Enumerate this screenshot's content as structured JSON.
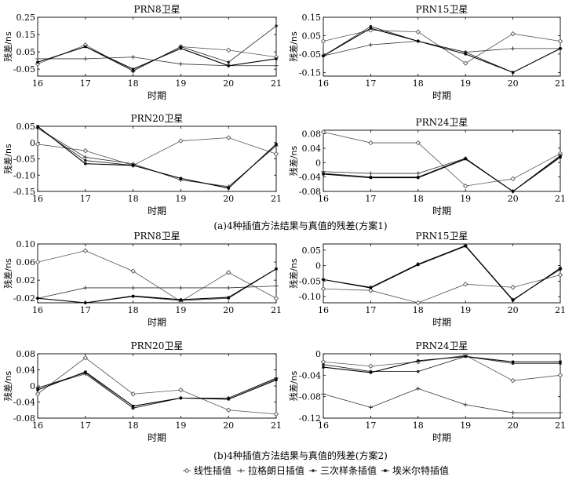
{
  "captions": {
    "a": "(a)4种插值方法结果与真值的残差(方案1)",
    "b": "(b)4种插值方法结果与真值的残差(方案2)"
  },
  "legend": [
    "线性插值",
    "拉格朗日插值",
    "三次样条插值",
    "埃米尔特插值"
  ],
  "colors": {
    "axis": "#000000",
    "series": [
      "#555555",
      "#333333",
      "#222222",
      "#000000"
    ]
  },
  "chart_data": [
    {
      "type": "line",
      "title": "PRN8卫星",
      "xlabel": "时期",
      "ylabel": "残差/ns",
      "x": [
        16,
        17,
        18,
        19,
        20,
        21
      ],
      "xticks": [
        "16",
        "17",
        "18",
        "19",
        "20",
        "21"
      ],
      "ylim": [
        -0.09,
        0.25
      ],
      "yticks": [
        "-0.05",
        "0.05",
        "0.15",
        "0.25"
      ],
      "ytick_values": [
        -0.05,
        0.05,
        0.15,
        0.25
      ],
      "series": [
        {
          "name": "线性插值",
          "values": [
            -0.02,
            0.09,
            -0.06,
            0.08,
            0.06,
            0.02
          ]
        },
        {
          "name": "拉格朗日插值",
          "values": [
            0.01,
            0.01,
            0.02,
            -0.02,
            -0.03,
            -0.03
          ]
        },
        {
          "name": "三次样条插值",
          "values": [
            -0.01,
            0.08,
            -0.06,
            0.08,
            -0.01,
            0.2
          ]
        },
        {
          "name": "埃米尔特插值",
          "values": [
            -0.01,
            0.08,
            -0.05,
            0.07,
            -0.03,
            0.01
          ]
        }
      ]
    },
    {
      "type": "line",
      "title": "PRN15卫星",
      "xlabel": "时期",
      "ylabel": "残差/ns",
      "x": [
        16,
        17,
        18,
        19,
        20,
        21
      ],
      "xticks": [
        "16",
        "17",
        "18",
        "19",
        "20",
        "21"
      ],
      "ylim": [
        -0.17,
        0.15
      ],
      "yticks": [
        "-0.15",
        "-0.05",
        "0.05",
        "0.15"
      ],
      "ytick_values": [
        -0.15,
        -0.05,
        0.05,
        0.15
      ],
      "series": [
        {
          "name": "线性插值",
          "values": [
            0.02,
            0.08,
            0.07,
            -0.1,
            0.06,
            0.02
          ]
        },
        {
          "name": "拉格朗日插值",
          "values": [
            -0.06,
            0.0,
            0.02,
            -0.04,
            -0.02,
            -0.02
          ]
        },
        {
          "name": "三次样条插值",
          "values": [
            -0.06,
            0.1,
            0.02,
            -0.04,
            -0.15,
            -0.02
          ]
        },
        {
          "name": "埃米尔特插值",
          "values": [
            -0.06,
            0.09,
            0.02,
            -0.05,
            -0.15,
            -0.02
          ]
        }
      ]
    },
    {
      "type": "line",
      "title": "PRN20卫星",
      "xlabel": "时期",
      "ylabel": "残差/ns",
      "x": [
        16,
        17,
        18,
        19,
        20,
        21
      ],
      "xticks": [
        "16",
        "17",
        "18",
        "19",
        "20",
        "21"
      ],
      "ylim": [
        -0.15,
        0.05
      ],
      "yticks": [
        "-0.15",
        "-0.10",
        "-0.05",
        "0",
        "0.05"
      ],
      "ytick_values": [
        -0.15,
        -0.1,
        -0.05,
        0,
        0.05
      ],
      "series": [
        {
          "name": "线性插值",
          "values": [
            -0.005,
            -0.025,
            -0.07,
            0.005,
            0.015,
            -0.035
          ]
        },
        {
          "name": "拉格朗日插值",
          "values": [
            0.045,
            -0.045,
            -0.065,
            -0.115,
            -0.135,
            -0.01
          ]
        },
        {
          "name": "三次样条插值",
          "values": [
            0.045,
            -0.055,
            -0.07,
            -0.11,
            -0.14,
            -0.005
          ]
        },
        {
          "name": "埃米尔特插值",
          "values": [
            0.05,
            -0.065,
            -0.07,
            -0.11,
            -0.14,
            -0.005
          ]
        }
      ]
    },
    {
      "type": "line",
      "title": "PRN24卫星",
      "xlabel": "时期",
      "ylabel": "残差/ns",
      "x": [
        16,
        17,
        18,
        19,
        20,
        21
      ],
      "xticks": [
        "16",
        "17",
        "18",
        "19",
        "20",
        "21"
      ],
      "ylim": [
        -0.08,
        0.09
      ],
      "yticks": [
        "-0.08",
        "-0.04",
        "0",
        "0.04",
        "0.08"
      ],
      "ytick_values": [
        -0.08,
        -0.04,
        0,
        0.04,
        0.08
      ],
      "series": [
        {
          "name": "线性插值",
          "values": [
            0.085,
            0.055,
            0.055,
            -0.065,
            -0.045,
            0.025
          ]
        },
        {
          "name": "拉格朗日插值",
          "values": [
            -0.025,
            -0.03,
            -0.03,
            0.012,
            -0.08,
            0.02
          ]
        },
        {
          "name": "三次样条插值",
          "values": [
            -0.03,
            -0.04,
            -0.04,
            0.012,
            -0.08,
            0.018
          ]
        },
        {
          "name": "埃米尔特插值",
          "values": [
            -0.032,
            -0.042,
            -0.042,
            0.01,
            -0.08,
            0.015
          ]
        }
      ]
    },
    {
      "type": "line",
      "title": "PRN8卫星",
      "xlabel": "时期",
      "ylabel": "残差/ns",
      "x": [
        16,
        17,
        18,
        19,
        20,
        21
      ],
      "xticks": [
        "16",
        "17",
        "18",
        "19",
        "20",
        "21"
      ],
      "ylim": [
        -0.03,
        0.1
      ],
      "yticks": [
        "-0.02",
        "0.02",
        "0.06",
        "0.10"
      ],
      "ytick_values": [
        -0.02,
        0.02,
        0.06,
        0.1
      ],
      "series": [
        {
          "name": "线性插值",
          "values": [
            0.06,
            0.085,
            0.04,
            -0.027,
            0.037,
            -0.02
          ]
        },
        {
          "name": "拉格朗日插值",
          "values": [
            -0.02,
            0.003,
            0.003,
            0.003,
            0.003,
            0.007
          ]
        },
        {
          "name": "三次样条插值",
          "values": [
            -0.02,
            -0.03,
            -0.016,
            -0.025,
            -0.02,
            0.045
          ]
        },
        {
          "name": "埃米尔特插值",
          "values": [
            -0.02,
            -0.03,
            -0.015,
            -0.023,
            -0.018,
            0.045
          ]
        }
      ]
    },
    {
      "type": "line",
      "title": "PRN15卫星",
      "xlabel": "时期",
      "ylabel": "残差/ns",
      "x": [
        16,
        17,
        18,
        19,
        20,
        21
      ],
      "xticks": [
        "16",
        "17",
        "18",
        "19",
        "20",
        "21"
      ],
      "ylim": [
        -0.12,
        0.07
      ],
      "yticks": [
        "-0.10",
        "-0.05",
        "0",
        "0.05"
      ],
      "ytick_values": [
        -0.1,
        -0.05,
        0,
        0.05
      ],
      "series": [
        {
          "name": "线性插值",
          "values": [
            -0.075,
            -0.08,
            -0.12,
            -0.06,
            -0.07,
            -0.03
          ]
        },
        {
          "name": "拉格朗日插值",
          "values": [
            -0.045,
            -0.07,
            0.005,
            0.065,
            -0.11,
            -0.01
          ]
        },
        {
          "name": "三次样条插值",
          "values": [
            -0.045,
            -0.07,
            0.005,
            0.065,
            -0.11,
            -0.012
          ]
        },
        {
          "name": "埃米尔特插值",
          "values": [
            -0.045,
            -0.072,
            0.003,
            0.063,
            -0.112,
            -0.008
          ]
        }
      ]
    },
    {
      "type": "line",
      "title": "PRN20卫星",
      "xlabel": "时期",
      "ylabel": "残差/ns",
      "x": [
        16,
        17,
        18,
        19,
        20,
        21
      ],
      "xticks": [
        "16",
        "17",
        "18",
        "19",
        "20",
        "21"
      ],
      "ylim": [
        -0.08,
        0.08
      ],
      "yticks": [
        "-0.08",
        "-0.04",
        "0",
        "0.04",
        "0.08"
      ],
      "ytick_values": [
        -0.08,
        -0.04,
        0,
        0.04,
        0.08
      ],
      "series": [
        {
          "name": "线性插值",
          "values": [
            -0.02,
            0.07,
            -0.02,
            -0.01,
            -0.06,
            -0.07
          ]
        },
        {
          "name": "拉格朗日插值",
          "values": [
            -0.005,
            0.03,
            -0.055,
            -0.03,
            -0.03,
            0.02
          ]
        },
        {
          "name": "三次样条插值",
          "values": [
            -0.005,
            0.033,
            -0.055,
            -0.03,
            -0.03,
            0.018
          ]
        },
        {
          "name": "埃米尔特插值",
          "values": [
            -0.01,
            0.035,
            -0.05,
            -0.03,
            -0.033,
            0.015
          ]
        }
      ]
    },
    {
      "type": "line",
      "title": "PRN24卫星",
      "xlabel": "时期",
      "ylabel": "残差/ns",
      "x": [
        16,
        17,
        18,
        19,
        20,
        21
      ],
      "xticks": [
        "16",
        "17",
        "18",
        "19",
        "20",
        "21"
      ],
      "ylim": [
        -0.12,
        0.0
      ],
      "yticks": [
        "-0.12",
        "-0.08",
        "-0.04",
        "0"
      ],
      "ytick_values": [
        -0.12,
        -0.08,
        -0.04,
        0
      ],
      "series": [
        {
          "name": "线性插值",
          "values": [
            -0.015,
            -0.023,
            -0.015,
            -0.003,
            -0.05,
            -0.04
          ]
        },
        {
          "name": "拉格朗日插值",
          "values": [
            -0.075,
            -0.1,
            -0.065,
            -0.095,
            -0.11,
            -0.11
          ]
        },
        {
          "name": "三次样条插值",
          "values": [
            -0.02,
            -0.033,
            -0.033,
            -0.005,
            -0.018,
            -0.018
          ]
        },
        {
          "name": "埃米尔特插值",
          "values": [
            -0.025,
            -0.035,
            -0.013,
            -0.005,
            -0.015,
            -0.015
          ]
        }
      ]
    }
  ]
}
